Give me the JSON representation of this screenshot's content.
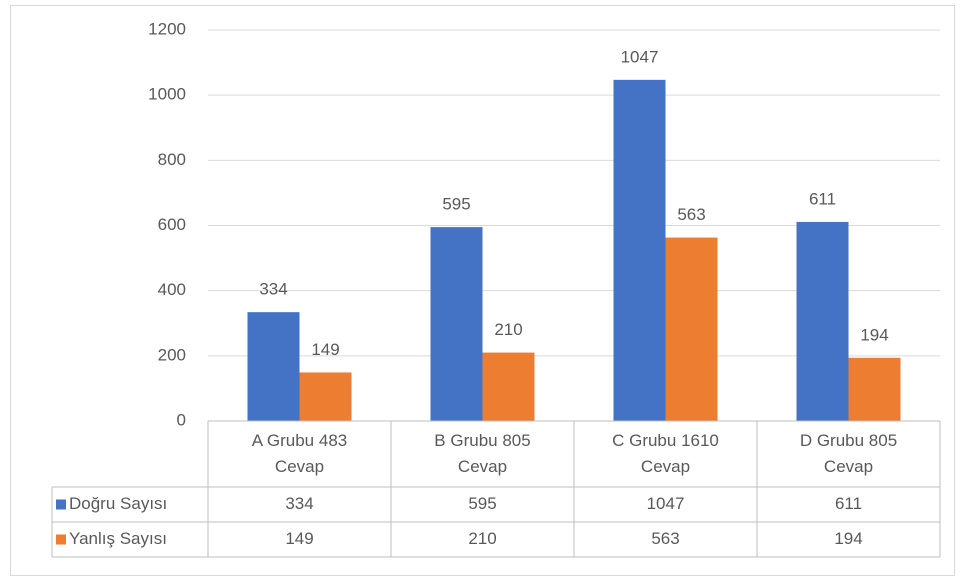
{
  "chart_data": {
    "type": "bar",
    "categories": [
      "A Grubu 483 Cevap",
      "B Grubu 805 Cevap",
      "C Grubu 1610 Cevap",
      "D Grubu 805 Cevap"
    ],
    "series": [
      {
        "name": "Doğru Sayısı",
        "color": "#4472c4",
        "values": [
          334,
          595,
          1047,
          611
        ]
      },
      {
        "name": "Yanlış Sayısı",
        "color": "#ed7d31",
        "values": [
          149,
          210,
          563,
          194
        ]
      }
    ],
    "ylim": [
      0,
      1200
    ],
    "yticks": [
      0,
      200,
      400,
      600,
      800,
      1000,
      1200
    ],
    "grid": true,
    "data_table": true
  }
}
